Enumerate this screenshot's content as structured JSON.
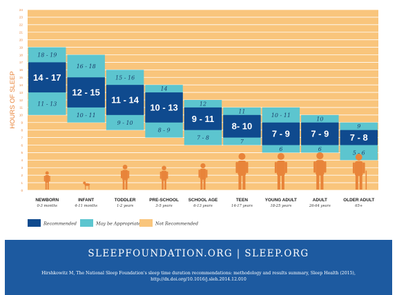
{
  "chart_data": {
    "type": "bar",
    "ylabel": "HOURS OF SLEEP",
    "ylim": [
      0,
      24
    ],
    "yticks": [
      0,
      1,
      2,
      3,
      4,
      5,
      6,
      7,
      8,
      9,
      10,
      11,
      12,
      13,
      14,
      15,
      16,
      17,
      18,
      19,
      20,
      21,
      22,
      23,
      24
    ],
    "grid": true,
    "legend_position": "bottom-left",
    "colors": {
      "recommended": "#0f4a8e",
      "may_be_appropriate": "#5cc5cf",
      "not_recommended": "#f9c57c",
      "grid": "#ffffff",
      "axis_text": "#e8843a",
      "silhouette": "#e8843a"
    },
    "legend": [
      {
        "key": "recommended",
        "label": "Recommended"
      },
      {
        "key": "may_be_appropriate",
        "label": "May be Appropriate"
      },
      {
        "key": "not_recommended",
        "label": "Not Recommended"
      }
    ],
    "groups": [
      {
        "name": "NEWBORN",
        "age": "0-3 months",
        "recommended": [
          14,
          17
        ],
        "appropriate_low": [
          11,
          13
        ],
        "appropriate_high": [
          18,
          19
        ],
        "rec_label": "14 - 17",
        "low_label": "11 - 13",
        "high_label": "18 - 19",
        "figure": "baby-icon"
      },
      {
        "name": "INFANT",
        "age": "4-11 months",
        "recommended": [
          12,
          15
        ],
        "appropriate_low": [
          10,
          11
        ],
        "appropriate_high": [
          16,
          18
        ],
        "rec_label": "12 - 15",
        "low_label": "10 - 11",
        "high_label": "16 - 18",
        "figure": "crawling-infant-icon"
      },
      {
        "name": "TODDLER",
        "age": "1-2 years",
        "recommended": [
          11,
          14
        ],
        "appropriate_low": [
          9,
          10
        ],
        "appropriate_high": [
          15,
          16
        ],
        "rec_label": "11 - 14",
        "low_label": "9 - 10",
        "high_label": "15 - 16",
        "figure": "toddler-icon"
      },
      {
        "name": "PRE-SCHOOL",
        "age": "3-5 years",
        "recommended": [
          10,
          13
        ],
        "appropriate_low": [
          8,
          9
        ],
        "appropriate_high": [
          14,
          14
        ],
        "rec_label": "10 - 13",
        "low_label": "8 - 9",
        "high_label": "14",
        "figure": "preschooler-icon"
      },
      {
        "name": "SCHOOL AGE",
        "age": "6-13 years",
        "recommended": [
          9,
          11
        ],
        "appropriate_low": [
          7,
          8
        ],
        "appropriate_high": [
          12,
          12
        ],
        "rec_label": "9 - 11",
        "low_label": "7 - 8",
        "high_label": "12",
        "figure": "child-icon"
      },
      {
        "name": "TEEN",
        "age": "14-17 years",
        "recommended": [
          8,
          10
        ],
        "appropriate_low": [
          7,
          7
        ],
        "appropriate_high": [
          11,
          11
        ],
        "rec_label": "8- 10",
        "low_label": "7",
        "high_label": "11",
        "figure": "teen-icon"
      },
      {
        "name": "YOUNG ADULT",
        "age": "18-25 years",
        "recommended": [
          7,
          9
        ],
        "appropriate_low": [
          6,
          6
        ],
        "appropriate_high": [
          10,
          11
        ],
        "rec_label": "7 - 9",
        "low_label": "6",
        "high_label": "10 - 11",
        "figure": "young-adult-icon"
      },
      {
        "name": "ADULT",
        "age": "26-64 years",
        "recommended": [
          7,
          9
        ],
        "appropriate_low": [
          6,
          6
        ],
        "appropriate_high": [
          10,
          10
        ],
        "rec_label": "7 - 9",
        "low_label": "6",
        "high_label": "10",
        "figure": "adult-icon"
      },
      {
        "name": "OLDER ADULT",
        "age": "65+",
        "recommended": [
          7,
          8
        ],
        "appropriate_low": [
          5,
          6
        ],
        "appropriate_high": [
          9,
          9
        ],
        "rec_label": "7 - 8",
        "low_label": "5 - 6",
        "high_label": "9",
        "figure": "older-adult-icon"
      }
    ]
  },
  "footer": {
    "site": "SLEEPFOUNDATION.ORG | SLEEP.ORG",
    "citation_line1": "Hirshkowitz M, The National Sleep Foundation's sleep time duration recommendations: methodology and results summary, Sleep Health (2015),",
    "citation_line2": "http://dx.doi.org/10.1016/j.sleh.2014.12.010"
  }
}
